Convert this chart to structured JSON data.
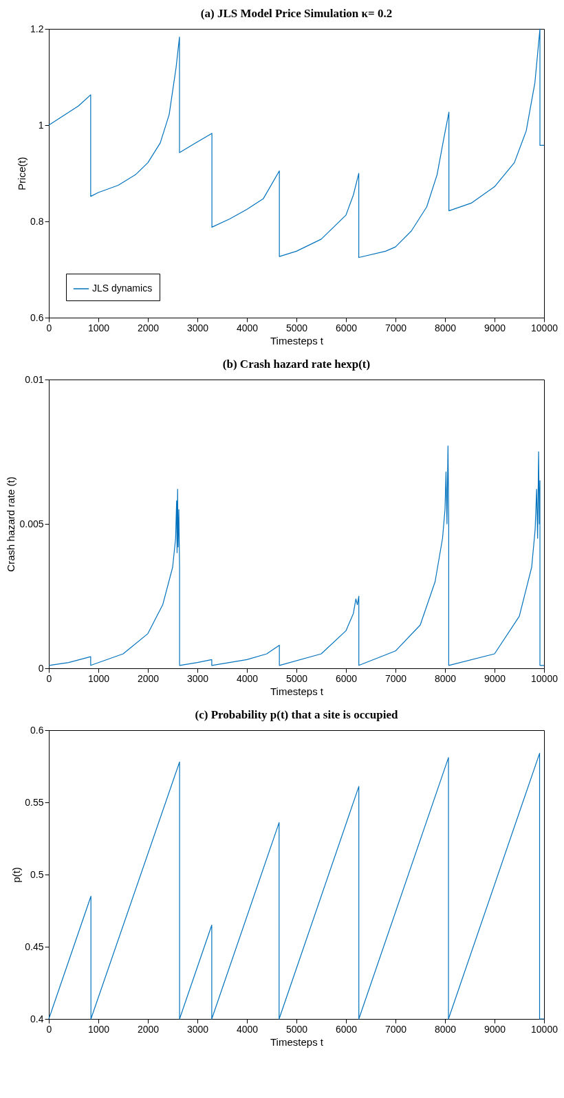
{
  "chart_data": [
    {
      "type": "line",
      "title": "(a) JLS Model Price Simulation κ= 0.2",
      "xlabel": "Timesteps t",
      "ylabel": "Price(t)",
      "xlim": [
        0,
        10000
      ],
      "xticks": [
        0,
        1000,
        2000,
        3000,
        4000,
        5000,
        6000,
        7000,
        8000,
        9000,
        10000
      ],
      "ylim": [
        0.6,
        1.2
      ],
      "yticks": [
        0.6,
        0.8,
        1,
        1.2
      ],
      "legend": "bottom left",
      "line_style": "solid",
      "marker": "none",
      "series": [
        {
          "name": "JLS dynamics",
          "color": "#0072bd",
          "x": [
            0,
            300,
            600,
            845,
            845,
            1000,
            1400,
            1750,
            2000,
            2250,
            2430,
            2570,
            2638,
            2638,
            2950,
            3293,
            3293,
            3650,
            4000,
            4330,
            4655,
            4655,
            5000,
            5500,
            6000,
            6150,
            6259,
            6259,
            6800,
            7000,
            7320,
            7630,
            7840,
            7975,
            8079,
            8079,
            8530,
            9000,
            9400,
            9640,
            9815,
            9917,
            9917,
            10000
          ],
          "values": [
            1.0,
            1.02,
            1.04,
            1.063,
            0.852,
            0.86,
            0.875,
            0.897,
            0.922,
            0.963,
            1.022,
            1.12,
            1.183,
            0.943,
            0.962,
            0.983,
            0.788,
            0.805,
            0.825,
            0.847,
            0.905,
            0.727,
            0.738,
            0.763,
            0.813,
            0.855,
            0.9,
            0.725,
            0.738,
            0.747,
            0.78,
            0.83,
            0.897,
            0.972,
            1.027,
            0.822,
            0.838,
            0.872,
            0.922,
            0.988,
            1.088,
            1.2,
            0.958,
            0.958
          ]
        }
      ]
    },
    {
      "type": "line",
      "title": "(b) Crash hazard rate hexp(t)",
      "xlabel": "Timesteps t",
      "ylabel": "Crash hazard rate (t)",
      "xlim": [
        0,
        10000
      ],
      "xticks": [
        0,
        1000,
        2000,
        3000,
        4000,
        5000,
        6000,
        7000,
        8000,
        9000,
        10000
      ],
      "ylim": [
        0,
        0.01
      ],
      "yticks": [
        0,
        0.005,
        0.01
      ],
      "line_style": "solid",
      "marker": "none",
      "series": [
        {
          "color": "#0072bd",
          "x": [
            0,
            400,
            845,
            845,
            1500,
            2000,
            2300,
            2500,
            2560,
            2580,
            2590,
            2600,
            2610,
            2625,
            2640,
            2640,
            3000,
            3290,
            3290,
            4000,
            4400,
            4655,
            4655,
            5500,
            6000,
            6150,
            6200,
            6230,
            6260,
            6260,
            7000,
            7500,
            7800,
            7950,
            8000,
            8020,
            8040,
            8060,
            8075,
            8075,
            9000,
            9500,
            9750,
            9820,
            9850,
            9870,
            9890,
            9905,
            9917,
            9917,
            10000
          ],
          "values": [
            0.0001,
            0.0002,
            0.0004,
            0.0001,
            0.0005,
            0.0012,
            0.0022,
            0.0035,
            0.0045,
            0.0058,
            0.004,
            0.0062,
            0.0042,
            0.0055,
            0.0035,
            0.0001,
            0.0002,
            0.0003,
            0.0001,
            0.0003,
            0.0005,
            0.0008,
            0.0001,
            0.0005,
            0.0013,
            0.0019,
            0.0024,
            0.0022,
            0.0025,
            0.0001,
            0.0006,
            0.0015,
            0.003,
            0.0045,
            0.0055,
            0.0068,
            0.005,
            0.0077,
            0.0052,
            0.0001,
            0.0005,
            0.0018,
            0.0035,
            0.0048,
            0.0062,
            0.0045,
            0.0075,
            0.005,
            0.0065,
            0.0001,
            0.0001
          ]
        }
      ]
    },
    {
      "type": "line",
      "title": "(c) Probability p(t) that a site is occupied",
      "xlabel": "Timesteps t",
      "ylabel": "p(t)",
      "xlim": [
        0,
        10000
      ],
      "xticks": [
        0,
        1000,
        2000,
        3000,
        4000,
        5000,
        6000,
        7000,
        8000,
        9000,
        10000
      ],
      "ylim": [
        0.4,
        0.6
      ],
      "yticks": [
        0.4,
        0.45,
        0.5,
        0.55,
        0.6
      ],
      "line_style": "solid",
      "marker": "none",
      "series": [
        {
          "color": "#0072bd",
          "x": [
            0,
            850,
            850,
            2640,
            2640,
            3290,
            3290,
            4650,
            4650,
            6260,
            6260,
            8070,
            8070,
            9910,
            9910,
            10000
          ],
          "values": [
            0.4,
            0.485,
            0.4,
            0.578,
            0.4,
            0.465,
            0.4,
            0.536,
            0.4,
            0.561,
            0.4,
            0.581,
            0.4,
            0.584,
            0.4,
            0.4
          ]
        }
      ]
    }
  ]
}
